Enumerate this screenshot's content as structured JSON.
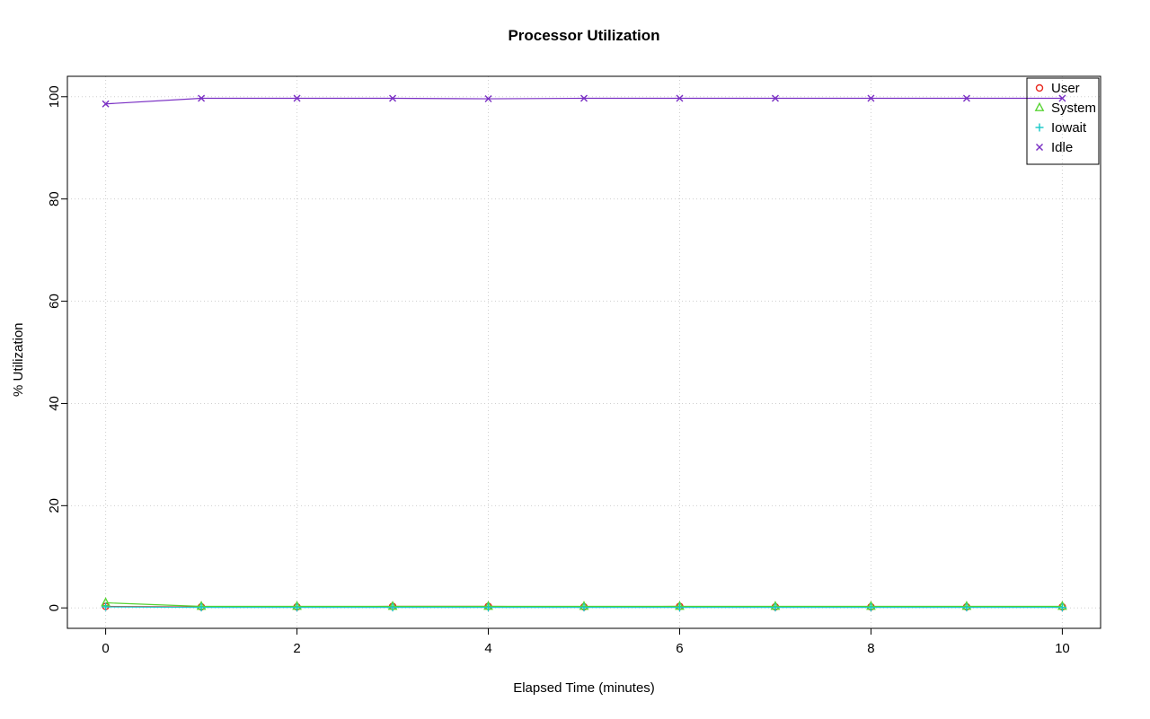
{
  "chart_data": {
    "type": "line",
    "title": "Processor Utilization",
    "xlabel": "Elapsed Time (minutes)",
    "ylabel": "% Utilization",
    "x": [
      0,
      1,
      2,
      3,
      4,
      5,
      6,
      7,
      8,
      9,
      10
    ],
    "xlim": [
      0,
      10
    ],
    "ylim": [
      0,
      100
    ],
    "x_ticks": [
      0,
      2,
      4,
      6,
      8,
      10
    ],
    "y_ticks": [
      0,
      20,
      40,
      60,
      80,
      100
    ],
    "grid": true,
    "grid_style": "dotted",
    "grid_color": "#cfcfcf",
    "axis_color": "#000000",
    "legend_position": "top-right",
    "series": [
      {
        "name": "User",
        "marker": "circle",
        "color": "#e8281e",
        "values": [
          0.3,
          0.2,
          0.2,
          0.3,
          0.3,
          0.2,
          0.3,
          0.2,
          0.2,
          0.2,
          0.2
        ]
      },
      {
        "name": "System",
        "marker": "triangle",
        "color": "#59d435",
        "values": [
          1.0,
          0.3,
          0.3,
          0.3,
          0.3,
          0.3,
          0.3,
          0.3,
          0.3,
          0.3,
          0.3
        ]
      },
      {
        "name": "Iowait",
        "marker": "plus",
        "color": "#16c8c8",
        "values": [
          0.2,
          0.1,
          0.1,
          0.1,
          0.1,
          0.1,
          0.1,
          0.1,
          0.1,
          0.1,
          0.1
        ]
      },
      {
        "name": "Idle",
        "marker": "x",
        "color": "#7a2fc4",
        "values": [
          98.6,
          99.7,
          99.7,
          99.7,
          99.6,
          99.7,
          99.7,
          99.7,
          99.7,
          99.7,
          99.7
        ]
      }
    ],
    "legend_labels": [
      "User",
      "System",
      "Iowait",
      "Idle"
    ]
  }
}
